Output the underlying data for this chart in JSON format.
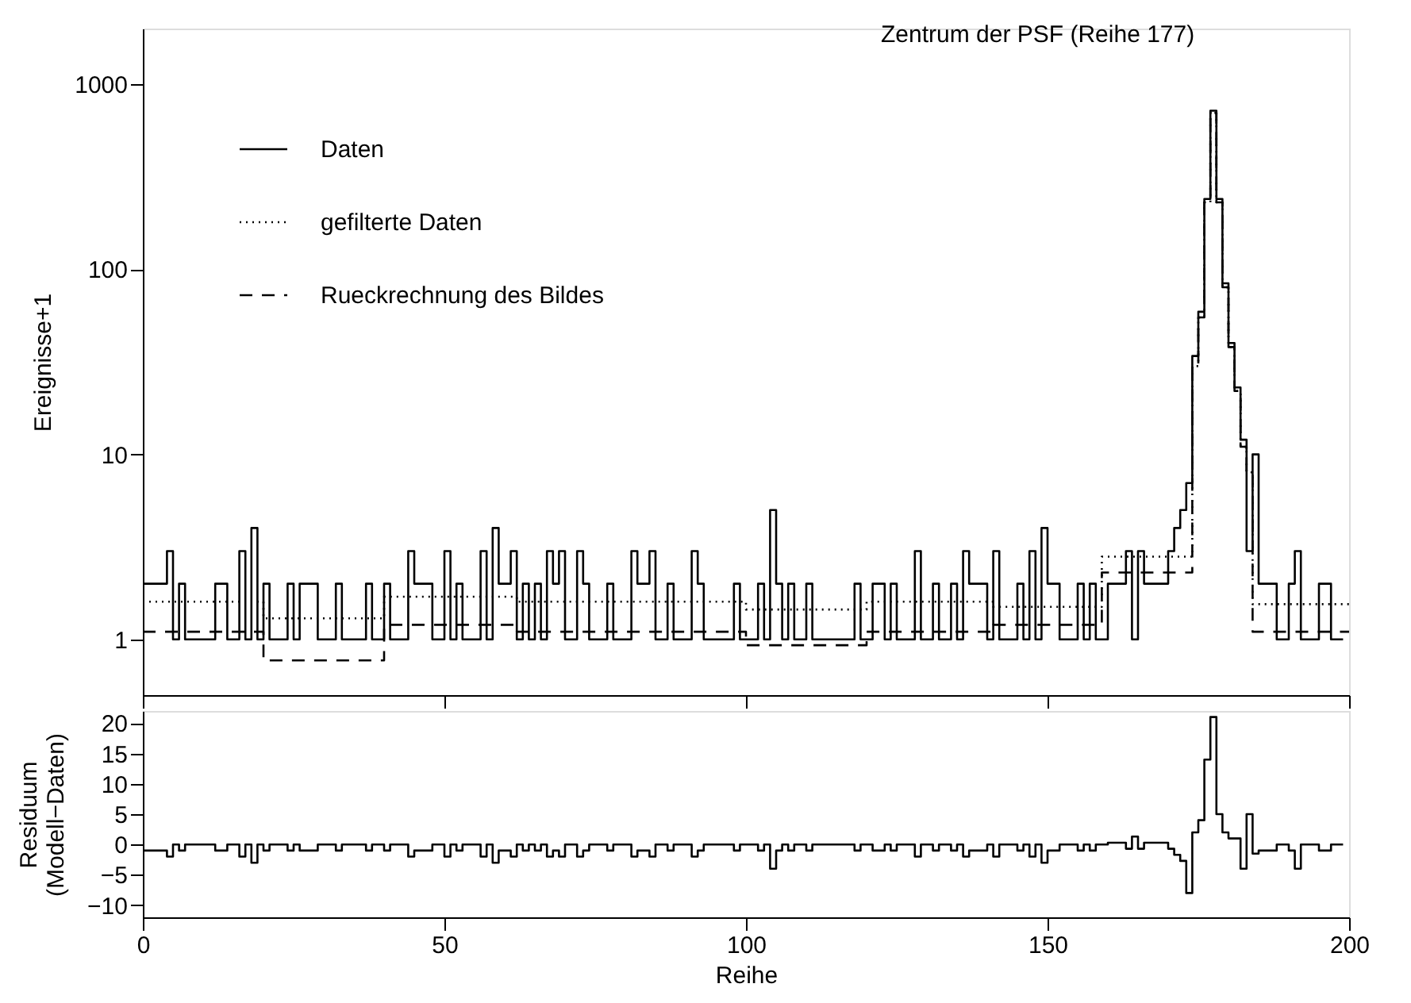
{
  "chart_data": [
    {
      "type": "step",
      "ylabel": "Ereignisse+1",
      "log": true,
      "xlim": [
        0,
        200
      ],
      "xticks": [
        0,
        50,
        100,
        150,
        200
      ],
      "ylim": [
        0.5,
        2000
      ],
      "yticks": [
        1,
        10,
        100,
        1000
      ],
      "tick_labels": "y",
      "grid": false,
      "legend": "top left",
      "annotations": [
        {
          "text": "Zentrum der PSF (Reihe 177)",
          "x": 177,
          "y": 720
        }
      ],
      "x": [
        0,
        1,
        2,
        3,
        4,
        5,
        6,
        7,
        8,
        9,
        10,
        11,
        12,
        13,
        14,
        15,
        16,
        17,
        18,
        19,
        20,
        21,
        22,
        23,
        24,
        25,
        26,
        27,
        28,
        29,
        30,
        31,
        32,
        33,
        34,
        35,
        36,
        37,
        38,
        39,
        40,
        41,
        42,
        43,
        44,
        45,
        46,
        47,
        48,
        49,
        50,
        51,
        52,
        53,
        54,
        55,
        56,
        57,
        58,
        59,
        60,
        61,
        62,
        63,
        64,
        65,
        66,
        67,
        68,
        69,
        70,
        71,
        72,
        73,
        74,
        75,
        76,
        77,
        78,
        79,
        80,
        81,
        82,
        83,
        84,
        85,
        86,
        87,
        88,
        89,
        90,
        91,
        92,
        93,
        94,
        95,
        96,
        97,
        98,
        99,
        100,
        101,
        102,
        103,
        104,
        105,
        106,
        107,
        108,
        109,
        110,
        111,
        112,
        113,
        114,
        115,
        116,
        117,
        118,
        119,
        120,
        121,
        122,
        123,
        124,
        125,
        126,
        127,
        128,
        129,
        130,
        131,
        132,
        133,
        134,
        135,
        136,
        137,
        138,
        139,
        140,
        141,
        142,
        143,
        144,
        145,
        146,
        147,
        148,
        149,
        150,
        151,
        152,
        153,
        154,
        155,
        156,
        157,
        158,
        159,
        160,
        161,
        162,
        163,
        164,
        165,
        166,
        167,
        168,
        169,
        170,
        171,
        172,
        173,
        174,
        175,
        176,
        177,
        178,
        179,
        180,
        181,
        182,
        183,
        184,
        185,
        186,
        187,
        188,
        189,
        190,
        191,
        192,
        193,
        194,
        195,
        196,
        197,
        198,
        199
      ],
      "series": [
        {
          "name": "Daten",
          "color": "#000000",
          "line_style": "solid",
          "values": [
            2,
            2,
            2,
            2,
            3,
            1,
            2,
            1,
            1,
            1,
            1,
            1,
            2,
            2,
            1,
            1,
            3,
            1,
            4,
            1,
            2,
            1,
            1,
            1,
            2,
            1,
            2,
            2,
            2,
            1,
            1,
            1,
            2,
            1,
            1,
            1,
            1,
            2,
            1,
            1,
            2,
            1,
            1,
            1,
            3,
            2,
            2,
            2,
            1,
            1,
            3,
            1,
            2,
            1,
            1,
            1,
            3,
            1,
            4,
            2,
            2,
            3,
            1,
            2,
            1,
            2,
            1,
            3,
            2,
            3,
            1,
            1,
            3,
            2,
            1,
            1,
            1,
            2,
            1,
            1,
            1,
            3,
            2,
            2,
            3,
            1,
            1,
            2,
            1,
            1,
            1,
            3,
            2,
            1,
            1,
            1,
            1,
            1,
            2,
            1,
            1,
            1,
            2,
            1,
            5,
            2,
            1,
            2,
            1,
            1,
            2,
            1,
            1,
            1,
            1,
            1,
            1,
            1,
            2,
            1,
            1,
            2,
            2,
            1,
            2,
            1,
            1,
            1,
            3,
            1,
            1,
            2,
            1,
            1,
            2,
            1,
            3,
            2,
            2,
            2,
            1,
            3,
            1,
            1,
            1,
            2,
            1,
            3,
            1,
            4,
            2,
            2,
            1,
            1,
            1,
            2,
            1,
            2,
            1,
            1,
            2,
            2,
            2,
            3,
            1,
            3,
            2,
            2,
            2,
            2,
            3,
            4,
            5,
            7,
            34,
            59,
            240,
            720,
            240,
            84,
            40,
            23,
            12,
            3,
            10,
            2,
            2,
            2,
            1,
            1,
            2,
            3,
            1,
            1,
            1,
            2,
            2,
            1,
            1,
            1
          ]
        },
        {
          "name": "gefilterte Daten",
          "color": "#000000",
          "line_style": "dotted",
          "x": [
            0,
            20,
            40,
            62,
            100,
            120,
            141,
            159,
            174,
            175,
            176,
            177,
            178,
            179,
            180,
            181,
            182,
            183,
            184,
            200
          ],
          "values": [
            1.6,
            1.3,
            1.7,
            1.6,
            1.45,
            1.6,
            1.5,
            2.8,
            30,
            55,
            230,
            700,
            230,
            80,
            38,
            22,
            11,
            8,
            1.55,
            1.55
          ]
        },
        {
          "name": "Rueckrechnung des Bildes",
          "color": "#000000",
          "line_style": "dashed",
          "x": [
            0,
            20,
            40,
            62,
            100,
            120,
            141,
            159,
            174,
            175,
            176,
            177,
            178,
            179,
            180,
            181,
            182,
            183,
            184,
            200
          ],
          "values": [
            1.1,
            0.77,
            1.2,
            1.1,
            0.93,
            1.1,
            1.2,
            2.3,
            30,
            55,
            230,
            700,
            230,
            80,
            38,
            22,
            11,
            8,
            1.1,
            1.1
          ]
        }
      ]
    },
    {
      "type": "step",
      "xlabel": "Reihe",
      "ylabel": "Residuum\n(Modell−Daten)",
      "xlim": [
        0,
        200
      ],
      "xticks": [
        0,
        50,
        100,
        150,
        200
      ],
      "ylim": [
        -12,
        22
      ],
      "yticks": [
        -10,
        -5,
        0,
        5,
        10,
        15,
        20
      ],
      "grid": false,
      "x": [
        0,
        1,
        2,
        3,
        4,
        5,
        6,
        7,
        8,
        9,
        10,
        11,
        12,
        13,
        14,
        15,
        16,
        17,
        18,
        19,
        20,
        21,
        22,
        23,
        24,
        25,
        26,
        27,
        28,
        29,
        30,
        31,
        32,
        33,
        34,
        35,
        36,
        37,
        38,
        39,
        40,
        41,
        42,
        43,
        44,
        45,
        46,
        47,
        48,
        49,
        50,
        51,
        52,
        53,
        54,
        55,
        56,
        57,
        58,
        59,
        60,
        61,
        62,
        63,
        64,
        65,
        66,
        67,
        68,
        69,
        70,
        71,
        72,
        73,
        74,
        75,
        76,
        77,
        78,
        79,
        80,
        81,
        82,
        83,
        84,
        85,
        86,
        87,
        88,
        89,
        90,
        91,
        92,
        93,
        94,
        95,
        96,
        97,
        98,
        99,
        100,
        101,
        102,
        103,
        104,
        105,
        106,
        107,
        108,
        109,
        110,
        111,
        112,
        113,
        114,
        115,
        116,
        117,
        118,
        119,
        120,
        121,
        122,
        123,
        124,
        125,
        126,
        127,
        128,
        129,
        130,
        131,
        132,
        133,
        134,
        135,
        136,
        137,
        138,
        139,
        140,
        141,
        142,
        143,
        144,
        145,
        146,
        147,
        148,
        149,
        150,
        151,
        152,
        153,
        154,
        155,
        156,
        157,
        158,
        159,
        160,
        161,
        162,
        163,
        164,
        165,
        166,
        167,
        168,
        169,
        170,
        171,
        172,
        173,
        174,
        175,
        176,
        177,
        178,
        179,
        180,
        181,
        182,
        183,
        184,
        185,
        186,
        187,
        188,
        189,
        190,
        191,
        192,
        193,
        194,
        195,
        196,
        197,
        198,
        199
      ],
      "series": [
        {
          "color": "#000000",
          "line_style": "solid",
          "values": [
            -1,
            -1,
            -1,
            -1,
            -2,
            0,
            -1,
            0,
            0,
            0,
            0,
            0,
            -1,
            -1,
            0,
            0,
            -2,
            0,
            -3,
            0,
            -1,
            0,
            0,
            0,
            -1,
            0,
            -1,
            -1,
            -1,
            0,
            0,
            0,
            -1,
            0,
            0,
            0,
            0,
            -1,
            0,
            0,
            -1,
            0,
            0,
            0,
            -2,
            -1,
            -1,
            -1,
            0,
            0,
            -2,
            0,
            -1,
            0,
            0,
            0,
            -2,
            0,
            -3,
            -1,
            -1,
            -2,
            0,
            -1,
            0,
            -1,
            0,
            -2,
            -1,
            -2,
            0,
            0,
            -2,
            -1,
            0,
            0,
            0,
            -1,
            0,
            0,
            0,
            -2,
            -1,
            -1,
            -2,
            0,
            0,
            -1,
            0,
            0,
            0,
            -2,
            -1,
            0,
            0,
            0,
            0,
            0,
            -1,
            0,
            0,
            0,
            -1,
            0,
            -4,
            -1,
            0,
            -1,
            0,
            0,
            -1,
            0,
            0,
            0,
            0,
            0,
            0,
            0,
            -1,
            0,
            0,
            -1,
            -1,
            0,
            -1,
            0,
            0,
            0,
            -2,
            0,
            0,
            -1,
            0,
            0,
            -1,
            0,
            -2,
            -1,
            -1,
            -1,
            0,
            -2,
            0,
            0,
            0,
            -1,
            0,
            -2,
            0,
            -3,
            -1,
            -1,
            0,
            0,
            0,
            -1,
            0,
            -1,
            0,
            0,
            0.3,
            0.3,
            0.3,
            -0.7,
            1.3,
            -0.7,
            0.3,
            0.3,
            0.3,
            0.3,
            -0.7,
            -1.7,
            -2.7,
            -8,
            2,
            4,
            14,
            21,
            5,
            2,
            1,
            1,
            -4,
            5,
            -1.5,
            -1,
            -1,
            -1,
            0,
            0,
            -1,
            -4,
            0,
            0,
            0,
            -1,
            -1,
            0,
            0,
            0
          ]
        }
      ]
    }
  ]
}
